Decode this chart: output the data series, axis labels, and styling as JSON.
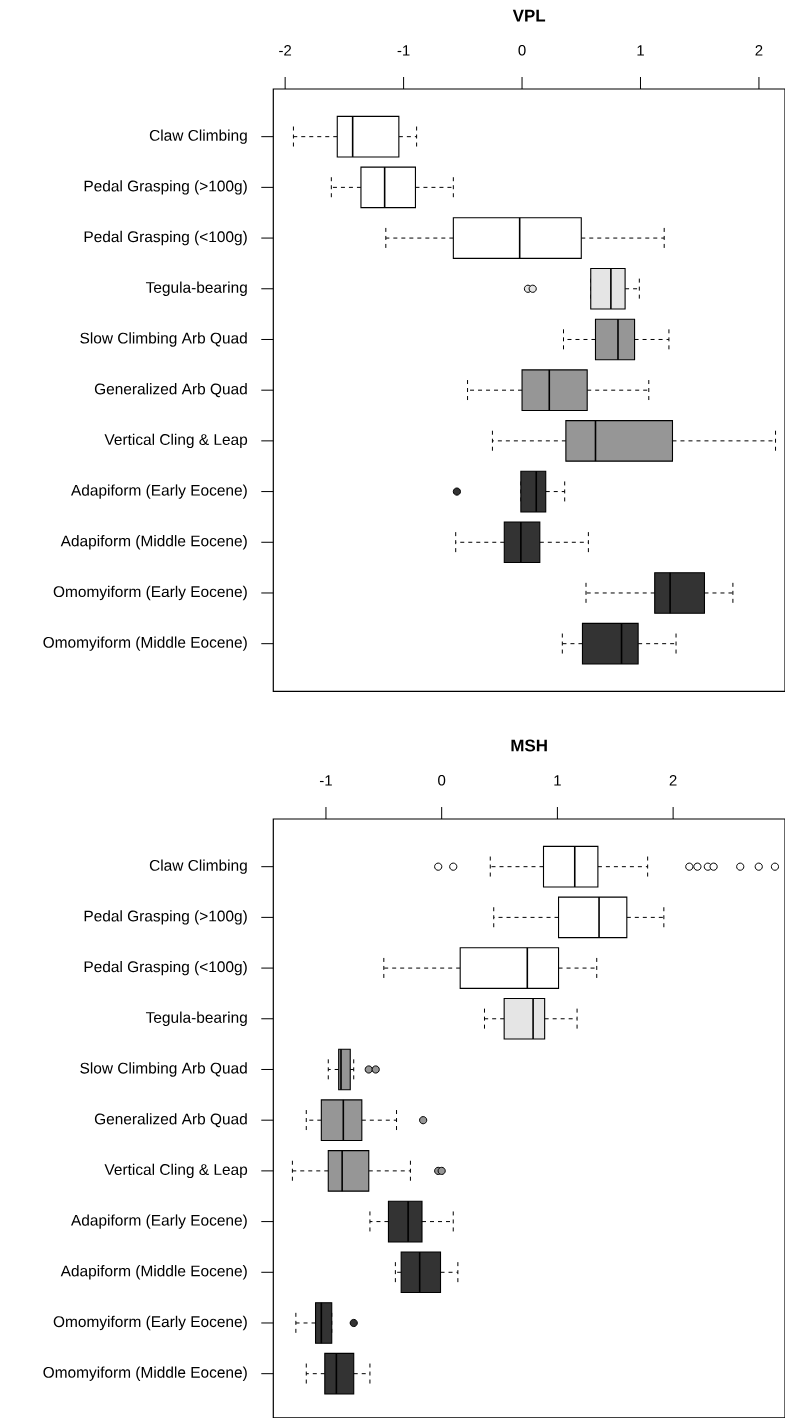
{
  "chart_data": [
    {
      "type": "box",
      "title": "VPL",
      "orientation": "horizontal",
      "categories": [
        "Claw Climbing",
        "Pedal Grasping (>100g)",
        "Pedal Grasping (<100g)",
        "Tegula-bearing",
        "Slow Climbing Arb Quad",
        "Generalized Arb Quad",
        "Vertical Cling & Leap",
        "Adapiform (Early Eocene)",
        "Adapiform (Middle Eocene)",
        "Omomyiform (Early Eocene)",
        "Omomyiform (Middle Eocene)"
      ],
      "colors": [
        "#ffffff",
        "#ffffff",
        "#ffffff",
        "#e5e5e5",
        "#969696",
        "#969696",
        "#969696",
        "#333333",
        "#333333",
        "#333333",
        "#333333"
      ],
      "boxes": [
        {
          "low": -1.93,
          "q1": -1.56,
          "median": -1.43,
          "q3": -1.04,
          "high": -0.89
        },
        {
          "low": -1.61,
          "q1": -1.36,
          "median": -1.16,
          "q3": -0.9,
          "high": -0.58
        },
        {
          "low": -1.15,
          "q1": -0.58,
          "median": -0.02,
          "q3": 0.5,
          "high": 1.2
        },
        {
          "low": 0.58,
          "q1": 0.58,
          "median": 0.75,
          "q3": 0.87,
          "high": 0.99,
          "outliers": [
            0.05,
            0.09
          ]
        },
        {
          "low": 0.35,
          "q1": 0.62,
          "median": 0.81,
          "q3": 0.95,
          "high": 1.24
        },
        {
          "low": -0.46,
          "q1": 0.0,
          "median": 0.23,
          "q3": 0.55,
          "high": 1.07
        },
        {
          "low": -0.25,
          "q1": 0.37,
          "median": 0.62,
          "q3": 1.27,
          "high": 2.14
        },
        {
          "low": -0.01,
          "q1": -0.01,
          "median": 0.12,
          "q3": 0.2,
          "high": 0.36,
          "outliers": [
            -0.55
          ]
        },
        {
          "low": -0.56,
          "q1": -0.15,
          "median": -0.01,
          "q3": 0.15,
          "high": 0.56
        },
        {
          "low": 0.54,
          "q1": 1.12,
          "median": 1.25,
          "q3": 1.54,
          "high": 1.78
        },
        {
          "low": 0.34,
          "q1": 0.51,
          "median": 0.84,
          "q3": 0.98,
          "high": 1.3
        }
      ],
      "xlim": [
        -2.1,
        2.22
      ],
      "xticks": [
        -2,
        -1,
        0,
        1,
        2
      ]
    },
    {
      "type": "box",
      "title": "MSH",
      "orientation": "horizontal",
      "categories": [
        "Claw Climbing",
        "Pedal Grasping (>100g)",
        "Pedal Grasping (<100g)",
        "Tegula-bearing",
        "Slow Climbing Arb Quad",
        "Generalized Arb Quad",
        "Vertical Cling & Leap",
        "Adapiform (Early Eocene)",
        "Adapiform (Middle Eocene)",
        "Omomyiform (Early Eocene)",
        "Omomyiform (Middle Eocene)"
      ],
      "colors": [
        "#ffffff",
        "#ffffff",
        "#ffffff",
        "#e5e5e5",
        "#969696",
        "#969696",
        "#969696",
        "#333333",
        "#333333",
        "#333333",
        "#333333"
      ],
      "boxes": [
        {
          "low": 0.42,
          "q1": 0.88,
          "median": 1.15,
          "q3": 1.35,
          "high": 1.78,
          "outliers": [
            -0.03,
            0.1,
            2.14,
            2.21,
            2.3,
            2.35,
            2.58,
            2.74,
            2.88
          ]
        },
        {
          "low": 0.45,
          "q1": 1.01,
          "median": 1.36,
          "q3": 1.6,
          "high": 1.92
        },
        {
          "low": -0.5,
          "q1": 0.16,
          "median": 0.74,
          "q3": 1.01,
          "high": 1.34
        },
        {
          "low": 0.37,
          "q1": 0.54,
          "median": 0.79,
          "q3": 0.89,
          "high": 1.17
        },
        {
          "low": -0.98,
          "q1": -0.89,
          "median": -0.87,
          "q3": -0.79,
          "high": -0.76,
          "outliers": [
            -0.63,
            -0.57
          ]
        },
        {
          "low": -1.17,
          "q1": -1.04,
          "median": -0.85,
          "q3": -0.69,
          "high": -0.39,
          "outliers": [
            -0.16
          ]
        },
        {
          "low": -1.29,
          "q1": -0.98,
          "median": -0.86,
          "q3": -0.63,
          "high": -0.27,
          "outliers": [
            -0.03,
            0.0
          ]
        },
        {
          "low": -0.62,
          "q1": -0.46,
          "median": -0.29,
          "q3": -0.17,
          "high": 0.1
        },
        {
          "low": -0.4,
          "q1": -0.35,
          "median": -0.19,
          "q3": -0.01,
          "high": 0.14
        },
        {
          "low": -1.26,
          "q1": -1.09,
          "median": -1.04,
          "q3": -0.95,
          "high": -0.95,
          "outliers": [
            -0.76
          ]
        },
        {
          "low": -1.17,
          "q1": -1.01,
          "median": -0.91,
          "q3": -0.76,
          "high": -0.62
        }
      ],
      "xlim": [
        -1.455,
        2.967
      ],
      "xticks": [
        -1,
        0,
        1,
        2
      ]
    }
  ]
}
